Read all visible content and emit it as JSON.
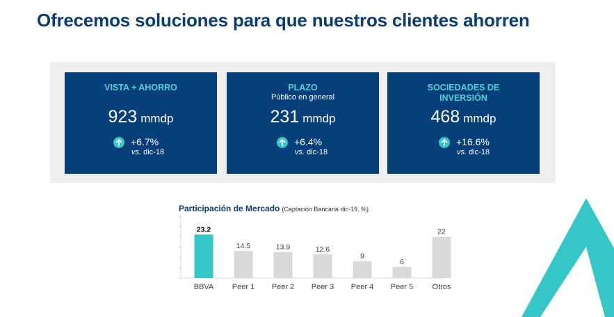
{
  "page": {
    "title": "Ofrecemos soluciones para que nuestros clientes ahorren"
  },
  "cards": [
    {
      "title_line1": "VISTA + AHORRO",
      "title_line2": "",
      "subtitle": "",
      "amount": "923",
      "unit": "mmdp",
      "change": "+6.7%",
      "vs_prefix": "vs.",
      "vs_suffix": "dic-18"
    },
    {
      "title_line1": "PLAZO",
      "title_line2": "",
      "subtitle": "Público en general",
      "amount": "231",
      "unit": "mmdp",
      "change": "+6.4%",
      "vs_prefix": "vs.",
      "vs_suffix": "dic-18"
    },
    {
      "title_line1": "SOCIEDADES DE",
      "title_line2": "INVERSIÓN",
      "subtitle": "",
      "amount": "468",
      "unit": "mmdp",
      "change": "+16.6%",
      "vs_prefix": "vs.",
      "vs_suffix": "dic-18"
    }
  ],
  "colors": {
    "card_bg": "#073f7b",
    "panel_bg": "#efefef",
    "accent_teal": "#35c6c8",
    "title_blue": "#0b3d74",
    "bar_highlight": "#35c6c8",
    "bar_default": "#d9d9d9"
  },
  "icons": {
    "change": "arrow-up-circle-icon",
    "logo": "triangle-logo-icon"
  },
  "chart_data": {
    "type": "bar",
    "title": "Participación de Mercado",
    "subtitle": "(Captación Bancaria dic-19, %)",
    "categories": [
      "BBVA",
      "Peer 1",
      "Peer 2",
      "Peer 3",
      "Peer 4",
      "Peer 5",
      "Otros"
    ],
    "values": [
      23.2,
      14.5,
      13.9,
      12.6,
      9,
      6,
      22
    ],
    "value_labels": [
      "23.2",
      "14.5",
      "13.9",
      "12.6",
      "9",
      "6",
      "22"
    ],
    "highlight_index": 0,
    "xlabel": "",
    "ylabel": "",
    "ylim": [
      0,
      33
    ],
    "grid": false,
    "legend": "none"
  }
}
